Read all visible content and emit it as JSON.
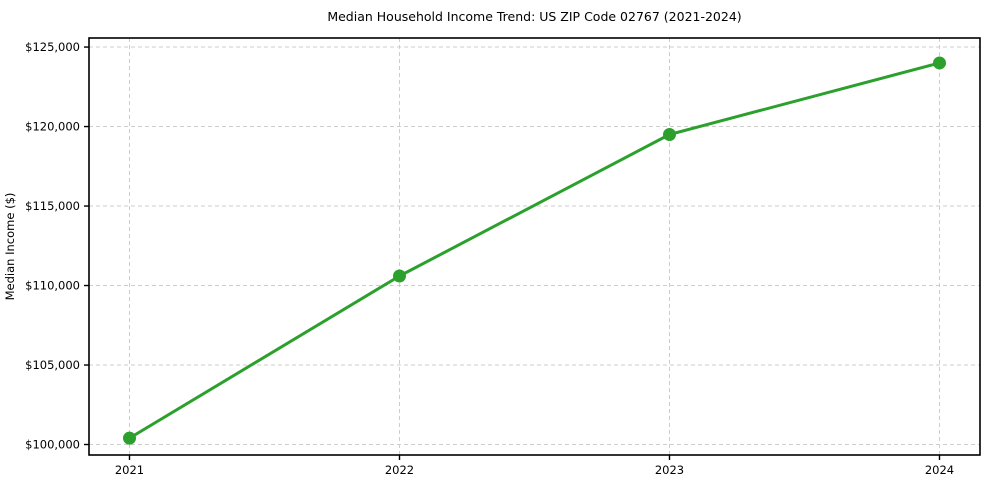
{
  "chart_data": {
    "type": "line",
    "title": "Median Household Income Trend: US ZIP Code 02767 (2021-2024)",
    "xlabel": "",
    "ylabel": "Median Income ($)",
    "x": [
      2021,
      2022,
      2023,
      2024
    ],
    "series": [
      {
        "name": "Median Household Income",
        "values": [
          100400,
          110600,
          119500,
          124000
        ]
      }
    ],
    "x_tick_labels": [
      "2021",
      "2022",
      "2023",
      "2024"
    ],
    "y_ticks": [
      100000,
      105000,
      110000,
      115000,
      120000,
      125000
    ],
    "y_tick_labels": [
      "$100,000",
      "$105,000",
      "$110,000",
      "$115,000",
      "$120,000",
      "$125,000"
    ],
    "xlim": [
      2020.85,
      2024.15
    ],
    "ylim": [
      99340,
      125570
    ],
    "grid": true,
    "grid_style": "dashed",
    "legend": false,
    "line_color": "#2ca02c",
    "marker": "circle",
    "grid_color": "#cdcdcd",
    "spine_color": "#000000",
    "background_color": "#ffffff"
  }
}
